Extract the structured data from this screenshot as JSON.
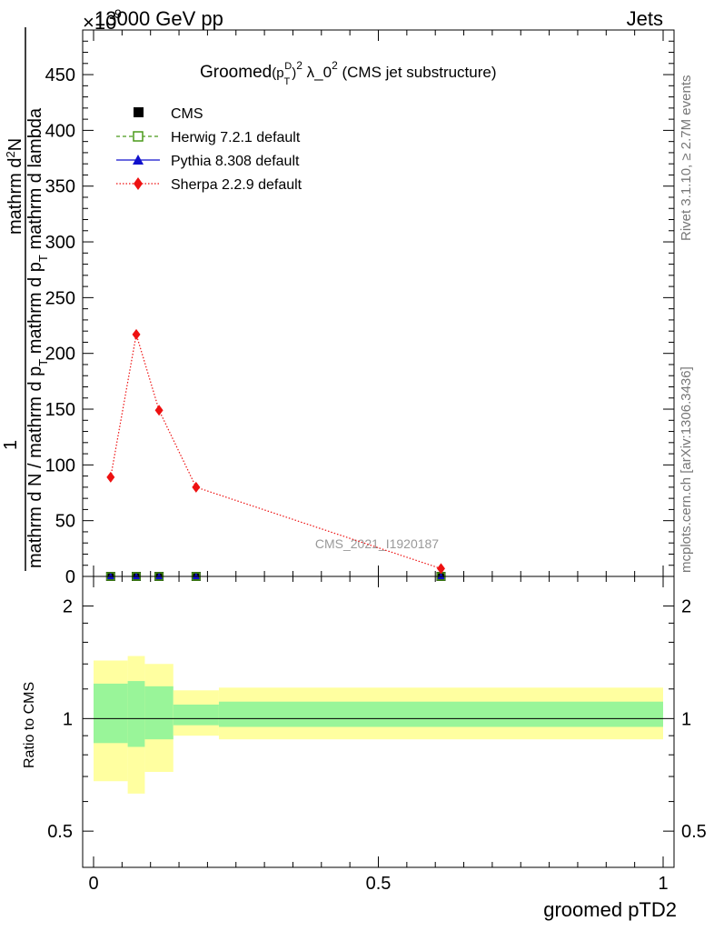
{
  "header": {
    "energy": "13000 GeV pp",
    "process": "Jets",
    "exponent_mark": "×10",
    "exponent_value": "9"
  },
  "title": {
    "prefix": "Groomed",
    "formula": "(p",
    "sub_T": "T",
    "sup_D": "D",
    "close": ")",
    "sup_2": "2",
    "lambda": " λ_0",
    "sup_2b": "2",
    "suffix": " (CMS jet substructure)"
  },
  "side": {
    "rivet": "Rivet 3.1.10, ≥ 2.7M events",
    "mcplots": "mcplots.cern.ch [arXiv:1306.3436]"
  },
  "watermark": "CMS_2021_I1920187",
  "ylabel_main": {
    "numerator": "mathrm d²N",
    "numerator_parts": [
      "mathrm d",
      "2",
      "N"
    ],
    "one": "1",
    "denominator_parts": [
      "mathrm d N / mathrm d p",
      "T",
      " mathrm d p",
      "T",
      " mathrm d lambda"
    ]
  },
  "legend": {
    "items": [
      {
        "label": "CMS",
        "color": "#000000",
        "marker": "square-filled",
        "line": "none"
      },
      {
        "label": "Herwig 7.2.1 default",
        "color": "#4a9a1a",
        "marker": "square-open",
        "line": "dashed"
      },
      {
        "label": "Pythia 8.308 default",
        "color": "#1010cc",
        "marker": "triangle",
        "line": "solid"
      },
      {
        "label": "Sherpa 2.2.9 default",
        "color": "#ee1111",
        "marker": "diamond",
        "line": "dotted"
      }
    ]
  },
  "chart_data": [
    {
      "type": "line",
      "panel": "main",
      "xlim": [
        0,
        1
      ],
      "ylim": [
        0,
        490
      ],
      "yticks": [
        0,
        50,
        100,
        150,
        200,
        250,
        300,
        350,
        400,
        450
      ],
      "ytick_labels": [
        "0",
        "50",
        "100",
        "150",
        "200",
        "250",
        "300",
        "350",
        "400",
        "450"
      ],
      "y_multiplier": "×10^9",
      "series": [
        {
          "name": "CMS",
          "color": "#000000",
          "x": [
            0.03,
            0.075,
            0.115,
            0.18,
            0.61
          ],
          "y": [
            0,
            0,
            0,
            0,
            0
          ]
        },
        {
          "name": "Herwig 7.2.1 default",
          "color": "#4a9a1a",
          "x": [
            0.03,
            0.075,
            0.115,
            0.18,
            0.61
          ],
          "y": [
            0,
            0,
            0,
            0,
            0
          ]
        },
        {
          "name": "Pythia 8.308 default",
          "color": "#1010cc",
          "x": [
            0.03,
            0.075,
            0.115,
            0.18,
            0.61
          ],
          "y": [
            0,
            0,
            0,
            0,
            0
          ]
        },
        {
          "name": "Sherpa 2.2.9 default",
          "color": "#ee1111",
          "x": [
            0.03,
            0.075,
            0.115,
            0.18,
            0.61
          ],
          "y": [
            89,
            217,
            149,
            80,
            7
          ]
        }
      ]
    },
    {
      "type": "area",
      "panel": "ratio",
      "ylabel": "Ratio to CMS",
      "xlabel": "groomed pTD2",
      "xlim": [
        0,
        1
      ],
      "ylog": true,
      "ylim": [
        0.4,
        2.4
      ],
      "yticks": [
        0.5,
        1,
        2
      ],
      "ytick_labels": [
        "0.5",
        "1",
        "2"
      ],
      "xticks": [
        0,
        0.5,
        1
      ],
      "xtick_labels": [
        "0",
        "0.5",
        "1"
      ],
      "bins": [
        {
          "xlo": 0.0,
          "xhi": 0.06,
          "stat_lo": 0.86,
          "stat_hi": 1.24,
          "tot_lo": 0.68,
          "tot_hi": 1.43
        },
        {
          "xlo": 0.06,
          "xhi": 0.09,
          "stat_lo": 0.84,
          "stat_hi": 1.26,
          "tot_lo": 0.63,
          "tot_hi": 1.47
        },
        {
          "xlo": 0.09,
          "xhi": 0.14,
          "stat_lo": 0.88,
          "stat_hi": 1.22,
          "tot_lo": 0.72,
          "tot_hi": 1.4
        },
        {
          "xlo": 0.14,
          "xhi": 0.22,
          "stat_lo": 0.96,
          "stat_hi": 1.09,
          "tot_lo": 0.9,
          "tot_hi": 1.19
        },
        {
          "xlo": 0.22,
          "xhi": 1.0,
          "stat_lo": 0.95,
          "stat_hi": 1.11,
          "tot_lo": 0.88,
          "tot_hi": 1.21
        }
      ],
      "reference": 1
    }
  ],
  "colors": {
    "stat_band": "#99f599",
    "total_band": "#ffffa0"
  }
}
